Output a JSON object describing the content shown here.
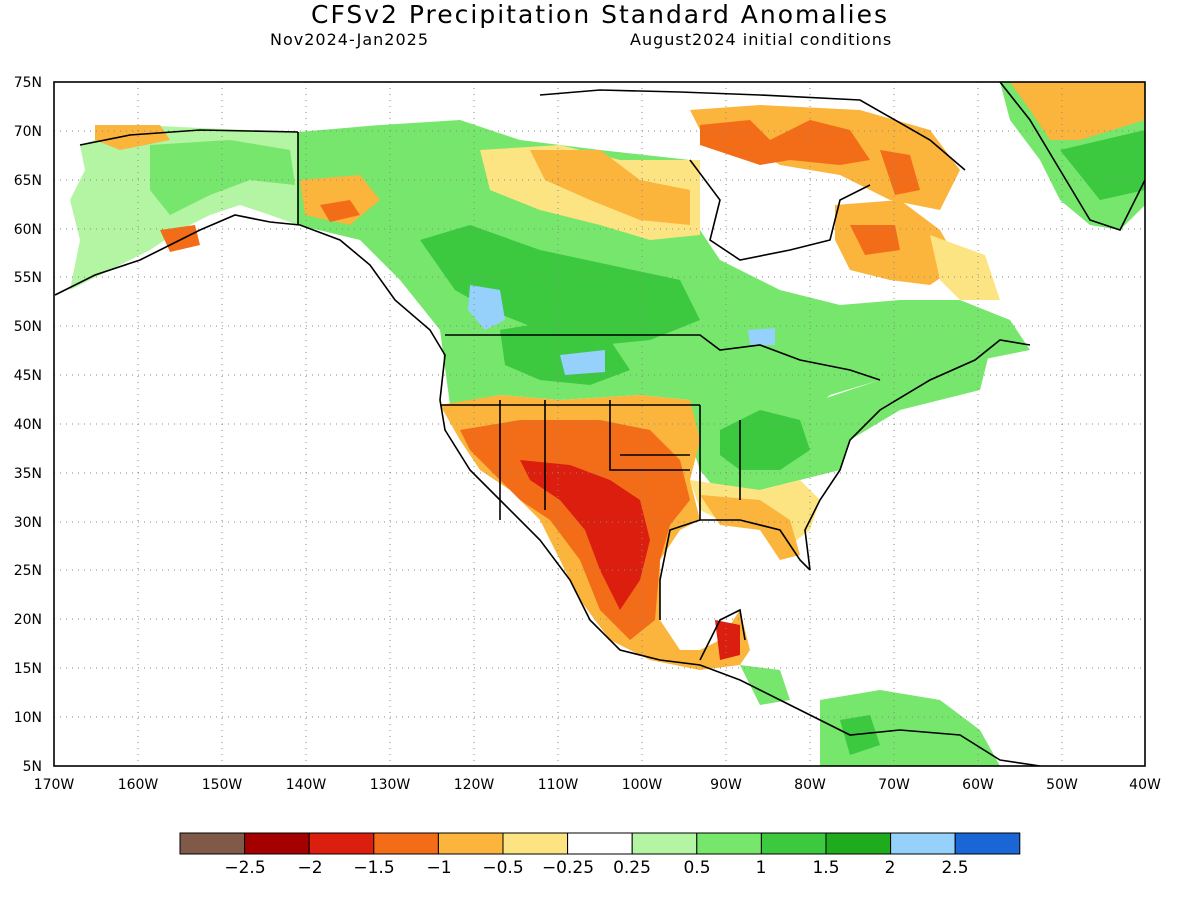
{
  "header": {
    "title": "CFSv2 Precipitation Standard Anomalies",
    "period": "Nov2024-Jan2025",
    "initial": "August2024 initial conditions"
  },
  "map": {
    "lat_ticks": [
      "75N",
      "70N",
      "65N",
      "60N",
      "55N",
      "50N",
      "45N",
      "40N",
      "35N",
      "30N",
      "25N",
      "20N",
      "15N",
      "10N",
      "5N"
    ],
    "lon_ticks": [
      "170W",
      "160W",
      "150W",
      "140W",
      "130W",
      "120W",
      "110W",
      "100W",
      "90W",
      "80W",
      "70W",
      "60W",
      "50W",
      "40W"
    ],
    "lat_range": [
      5,
      75
    ],
    "lon_range": [
      -170,
      -40
    ],
    "grid": "dotted"
  },
  "colorbar": {
    "labels": [
      "-2.5",
      "-2",
      "-1.5",
      "-1",
      "-0.5",
      "-0.25",
      "0.25",
      "0.5",
      "1",
      "1.5",
      "2",
      "2.5"
    ],
    "colors": [
      "#7f5a48",
      "#a40000",
      "#dc1e0f",
      "#f36c18",
      "#fbb43c",
      "#fde483",
      "#ffffff",
      "#b3f5a2",
      "#76e66c",
      "#3cc83f",
      "#1eac1e",
      "#96d1fb",
      "#1a66d6"
    ]
  }
}
